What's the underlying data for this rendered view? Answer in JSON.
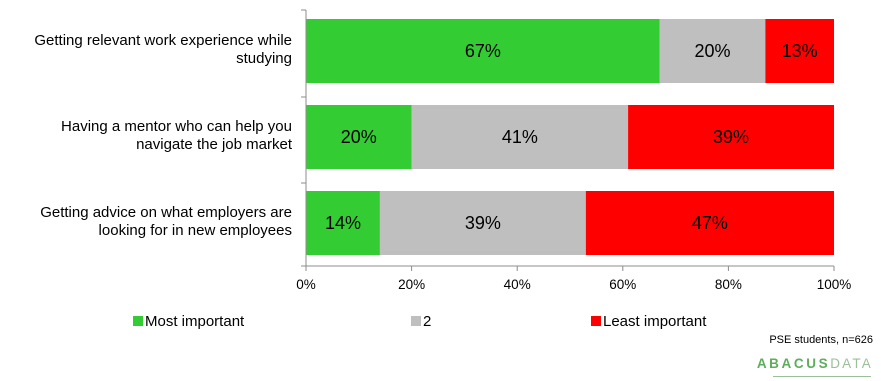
{
  "chart_data": {
    "type": "bar",
    "orientation": "horizontal",
    "stacked": true,
    "categories": [
      [
        "Getting relevant work experience while",
        "studying"
      ],
      [
        "Having a mentor who can help you",
        "navigate the job market"
      ],
      [
        "Getting advice on what employers are",
        "looking for in new employees"
      ]
    ],
    "series": [
      {
        "name": "Most important",
        "color": "#33cc33",
        "values": [
          67,
          20,
          14
        ]
      },
      {
        "name": "2",
        "color": "#bfbfbf",
        "values": [
          20,
          41,
          39
        ]
      },
      {
        "name": "Least important",
        "color": "#ff0000",
        "values": [
          13,
          39,
          47
        ]
      }
    ],
    "data_labels": [
      [
        "67%",
        "20%",
        "13%"
      ],
      [
        "20%",
        "41%",
        "39%"
      ],
      [
        "14%",
        "39%",
        "47%"
      ]
    ],
    "xlim": [
      0,
      100
    ],
    "xticks": [
      0,
      20,
      40,
      60,
      80,
      100
    ],
    "xtick_labels": [
      "0%",
      "20%",
      "40%",
      "60%",
      "80%",
      "100%"
    ],
    "grid": false,
    "legend_position": "bottom"
  },
  "footer": {
    "source": "PSE students, n=626",
    "logo_text_a": "ABACUS",
    "logo_text_b": "DATA"
  }
}
